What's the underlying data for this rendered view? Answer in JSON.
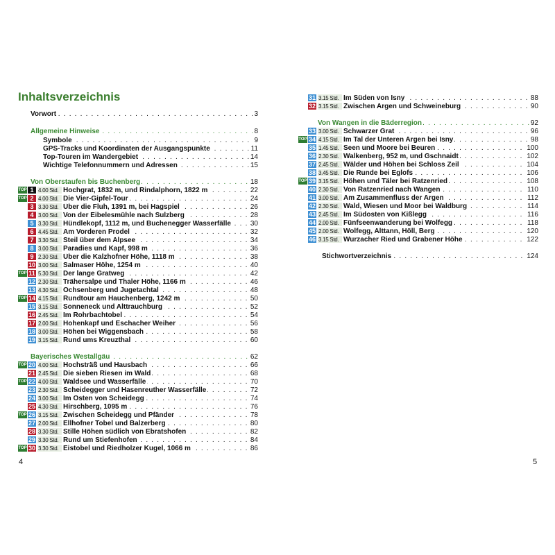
{
  "title": "Inhaltsverzeichnis",
  "colors": {
    "red": "#b71c2c",
    "blue": "#3d8fd3",
    "black": "#111111",
    "top_green": "#2e7d32",
    "heading_green": "#3b8a34"
  },
  "left_page_number": "4",
  "right_page_number": "5",
  "front": [
    {
      "label": "Vorwort",
      "page": "3",
      "style": "plain"
    },
    {
      "label": "Allgemeine Hinweise",
      "page": "8",
      "style": "green"
    },
    {
      "label": "Symbole",
      "page": "9",
      "style": "sub"
    },
    {
      "label": "GPS-Tracks und Koordinaten der Ausgangspunkte",
      "page": "11",
      "style": "sub"
    },
    {
      "label": "Top-Touren im Wandergebiet",
      "page": "14",
      "style": "sub"
    },
    {
      "label": "Wichtige Telefonnummern und Adressen",
      "page": "15",
      "style": "sub"
    }
  ],
  "sections": [
    {
      "label": "Von Oberstaufen bis Buchenberg",
      "page": "18"
    },
    {
      "label": "Bayerisches Westallgäu",
      "page": "62"
    },
    {
      "label": "Von Wangen in die Bäderregion",
      "page": "92"
    }
  ],
  "top_label": "TOP",
  "tours": [
    {
      "n": "1",
      "c": "black",
      "top": true,
      "time": "4.00 Std.",
      "title": "Hochgrat, 1832 m, und Rindalphorn, 1822 m",
      "page": "22"
    },
    {
      "n": "2",
      "c": "red",
      "top": true,
      "time": "4.00 Std.",
      "title": "Die Vier-Gipfel-Tour",
      "page": "24"
    },
    {
      "n": "3",
      "c": "red",
      "top": false,
      "time": "3.30 Std.",
      "title": "Über die Fluh, 1391 m, bei Hagspiel",
      "page": "26"
    },
    {
      "n": "4",
      "c": "red",
      "top": false,
      "time": "3.00 Std.",
      "title": "Von der Eibelesmühle nach Sulzberg",
      "page": "28"
    },
    {
      "n": "5",
      "c": "blue",
      "top": false,
      "time": "3.30 Std.",
      "title": "Hündlekopf, 1112 m, und Buchenegger Wasserfälle",
      "page": "30"
    },
    {
      "n": "6",
      "c": "red",
      "top": false,
      "time": "4.45 Std.",
      "title": "Am Vorderen Prodel",
      "page": "32"
    },
    {
      "n": "7",
      "c": "red",
      "top": false,
      "time": "3.30 Std.",
      "title": "Steil über dem Alpsee",
      "page": "34"
    },
    {
      "n": "8",
      "c": "blue",
      "top": false,
      "time": "3.00 Std.",
      "title": "Paradies und Kapf, 998 m",
      "page": "36"
    },
    {
      "n": "9",
      "c": "red",
      "top": false,
      "time": "2.30 Std.",
      "title": "Über die Kalzhofner Höhe, 1118 m",
      "page": "38"
    },
    {
      "n": "10",
      "c": "red",
      "top": false,
      "time": "3.00 Std.",
      "title": "Salmaser Höhe, 1254 m",
      "page": "40"
    },
    {
      "n": "11",
      "c": "red",
      "top": true,
      "time": "5.30 Std.",
      "title": "Der lange Gratweg",
      "page": "42"
    },
    {
      "n": "12",
      "c": "blue",
      "top": false,
      "time": "2.30 Std.",
      "title": "Trähersalpe und Thaler Höhe, 1166 m",
      "page": "46"
    },
    {
      "n": "13",
      "c": "blue",
      "top": false,
      "time": "4.30 Std.",
      "title": "Ochsenberg und Jugetachtal",
      "page": "48"
    },
    {
      "n": "14",
      "c": "red",
      "top": true,
      "time": "4.15 Std.",
      "title": "Rundtour am Hauchenberg, 1242 m",
      "page": "50"
    },
    {
      "n": "15",
      "c": "blue",
      "top": false,
      "time": "3.15 Std.",
      "title": "Sonneneck und Alttrauchburg",
      "page": "52"
    },
    {
      "n": "16",
      "c": "red",
      "top": false,
      "time": "2.45 Std.",
      "title": "Im Rohrbachtobel",
      "page": "54"
    },
    {
      "n": "17",
      "c": "red",
      "top": false,
      "time": "2.00 Std.",
      "title": "Hohenkapf und Eschacher Weiher",
      "page": "56"
    },
    {
      "n": "18",
      "c": "blue",
      "top": false,
      "time": "3.00 Std.",
      "title": "Höhen bei Wiggensbach",
      "page": "58"
    },
    {
      "n": "19",
      "c": "blue",
      "top": false,
      "time": "3.15 Std.",
      "title": "Rund ums Kreuzthal",
      "page": "60"
    },
    {
      "n": "20",
      "c": "blue",
      "top": true,
      "time": "4.00 Std.",
      "title": "Hochsträß und Hausbach",
      "page": "66"
    },
    {
      "n": "21",
      "c": "red",
      "top": false,
      "time": "2.45 Std.",
      "title": "Die sieben Riesen im Wald",
      "page": "68"
    },
    {
      "n": "22",
      "c": "blue",
      "top": true,
      "time": "4.00 Std.",
      "title": "Waldsee und Wasserfälle",
      "page": "70"
    },
    {
      "n": "23",
      "c": "blue",
      "top": false,
      "time": "2.30 Std.",
      "title": "Scheidegger und Hasenreuther Wasserfälle",
      "page": "72"
    },
    {
      "n": "24",
      "c": "blue",
      "top": false,
      "time": "3.00 Std.",
      "title": "Im Osten von Scheidegg",
      "page": "74"
    },
    {
      "n": "25",
      "c": "red",
      "top": false,
      "time": "4.30 Std.",
      "title": "Hirschberg, 1095 m",
      "page": "76"
    },
    {
      "n": "26",
      "c": "blue",
      "top": true,
      "time": "3.15 Std.",
      "title": "Zwischen Scheidegg und Pfänder",
      "page": "78"
    },
    {
      "n": "27",
      "c": "blue",
      "top": false,
      "time": "2.00 Std.",
      "title": "Ellhofner Tobel und Balzerberg",
      "page": "80"
    },
    {
      "n": "28",
      "c": "red",
      "top": false,
      "time": "3.30 Std.",
      "title": "Stille Höhen südlich von Ebratshofen",
      "page": "82"
    },
    {
      "n": "29",
      "c": "blue",
      "top": false,
      "time": "3.30 Std.",
      "title": "Rund um Stiefenhofen",
      "page": "84"
    },
    {
      "n": "30",
      "c": "red",
      "top": true,
      "time": "3.30 Std.",
      "title": "Eistobel und Riedholzer Kugel, 1066 m",
      "page": "86"
    },
    {
      "n": "31",
      "c": "blue",
      "top": false,
      "time": "3.15 Std.",
      "title": "Im Süden von Isny",
      "page": "88"
    },
    {
      "n": "32",
      "c": "red",
      "top": false,
      "time": "3.15 Std.",
      "title": "Zwischen Argen und Schweineburg",
      "page": "90"
    },
    {
      "n": "33",
      "c": "blue",
      "top": false,
      "time": "3.00 Std.",
      "title": "Schwarzer Grat",
      "page": "96"
    },
    {
      "n": "34",
      "c": "blue",
      "top": true,
      "time": "4.15 Std.",
      "title": "Im Tal der Unteren Argen bei Isny",
      "page": "98"
    },
    {
      "n": "35",
      "c": "blue",
      "top": false,
      "time": "1.45 Std.",
      "title": "Seen und Moore bei Beuren",
      "page": "100"
    },
    {
      "n": "36",
      "c": "blue",
      "top": false,
      "time": "2.30 Std.",
      "title": "Walkenberg, 952 m, und Gschnaidt",
      "page": "102"
    },
    {
      "n": "37",
      "c": "blue",
      "top": false,
      "time": "2.45 Std.",
      "title": "Wälder und Höhen bei Schloss Zeil",
      "page": "104"
    },
    {
      "n": "38",
      "c": "blue",
      "top": false,
      "time": "3.45 Std.",
      "title": "Die Runde bei Eglofs",
      "page": "106"
    },
    {
      "n": "39",
      "c": "blue",
      "top": true,
      "time": "3.15 Std.",
      "title": "Höhen und Täler bei Ratzenried",
      "page": "108"
    },
    {
      "n": "40",
      "c": "blue",
      "top": false,
      "time": "2.30 Std.",
      "title": "Von Ratzenried nach Wangen",
      "page": "110"
    },
    {
      "n": "41",
      "c": "blue",
      "top": false,
      "time": "3.00 Std.",
      "title": "Am Zusammenfluss der Argen",
      "page": "112"
    },
    {
      "n": "42",
      "c": "blue",
      "top": false,
      "time": "2.30 Std.",
      "title": "Wald, Wiesen und Moor bei Waldburg",
      "page": "114"
    },
    {
      "n": "43",
      "c": "blue",
      "top": false,
      "time": "2.45 Std.",
      "title": "Im Südosten von Kißlegg",
      "page": "116"
    },
    {
      "n": "44",
      "c": "blue",
      "top": false,
      "time": "2.00 Std.",
      "title": "Fünfseenwanderung bei Wolfegg",
      "page": "118"
    },
    {
      "n": "45",
      "c": "blue",
      "top": false,
      "time": "2.00 Std.",
      "title": "Wolfegg, Alttann, Höll, Berg",
      "page": "120"
    },
    {
      "n": "46",
      "c": "blue",
      "top": false,
      "time": "3.15 Std.",
      "title": "Wurzacher Ried und Grabener Höhe",
      "page": "122"
    }
  ],
  "index": {
    "label": "Stichwortverzeichnis",
    "page": "124"
  }
}
